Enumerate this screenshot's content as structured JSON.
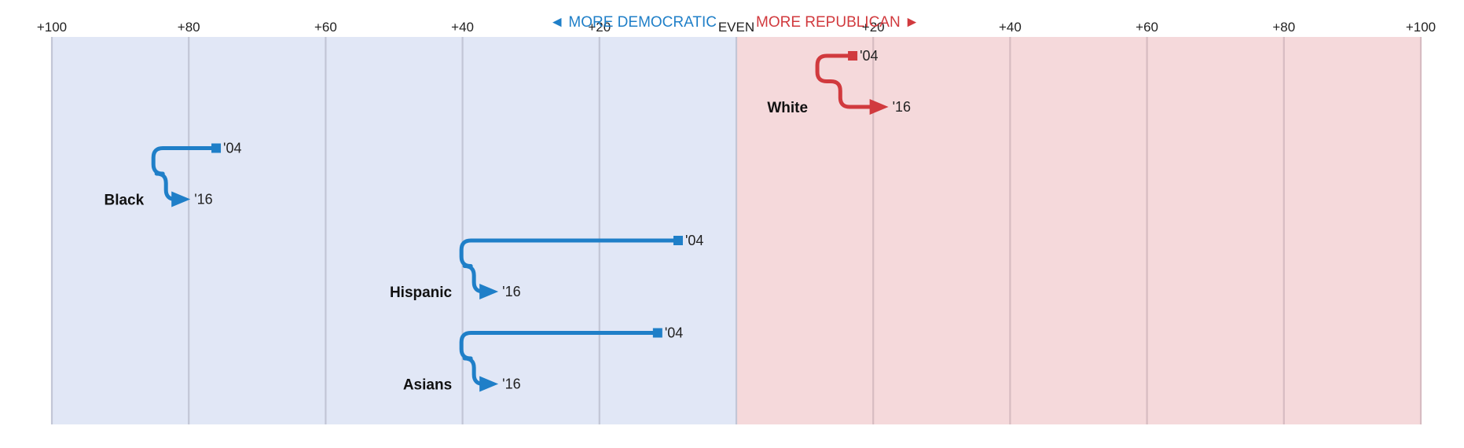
{
  "chart_data": {
    "type": "line",
    "title": "",
    "xlabel": "",
    "ylabel": "",
    "xlim": [
      -100,
      100
    ],
    "x_ticks": [
      {
        "value": -100,
        "label": "+100"
      },
      {
        "value": -80,
        "label": "+80"
      },
      {
        "value": -60,
        "label": "+60"
      },
      {
        "value": -40,
        "label": "+40"
      },
      {
        "value": -20,
        "label": "+20"
      },
      {
        "value": 0,
        "label": "EVEN"
      },
      {
        "value": 20,
        "label": "+20"
      },
      {
        "value": 40,
        "label": "+40"
      },
      {
        "value": 60,
        "label": "+60"
      },
      {
        "value": 80,
        "label": "+80"
      },
      {
        "value": 100,
        "label": "+100"
      }
    ],
    "direction_labels": {
      "left": "◄ MORE DEMOCRATIC",
      "right": "MORE REPUBLICAN ►"
    },
    "grid": true,
    "colors": {
      "democratic": "#1f7fc8",
      "republican": "#d13a3e",
      "democratic_bg": "#e1e7f6",
      "republican_bg": "#f5d9db",
      "gridline": "#c2c6d6"
    },
    "series": [
      {
        "name": "White",
        "party": "republican",
        "start": {
          "year": "'04",
          "value": 17
        },
        "end": {
          "year": "'16",
          "value": 22
        }
      },
      {
        "name": "Black",
        "party": "democratic",
        "start": {
          "year": "'04",
          "value": -76
        },
        "end": {
          "year": "'16",
          "value": -80
        }
      },
      {
        "name": "Hispanic",
        "party": "democratic",
        "start": {
          "year": "'04",
          "value": -8.5
        },
        "end": {
          "year": "'16",
          "value": -35
        }
      },
      {
        "name": "Asians",
        "party": "democratic",
        "start": {
          "year": "'04",
          "value": -11.5
        },
        "end": {
          "year": "'16",
          "value": -35
        }
      }
    ]
  }
}
